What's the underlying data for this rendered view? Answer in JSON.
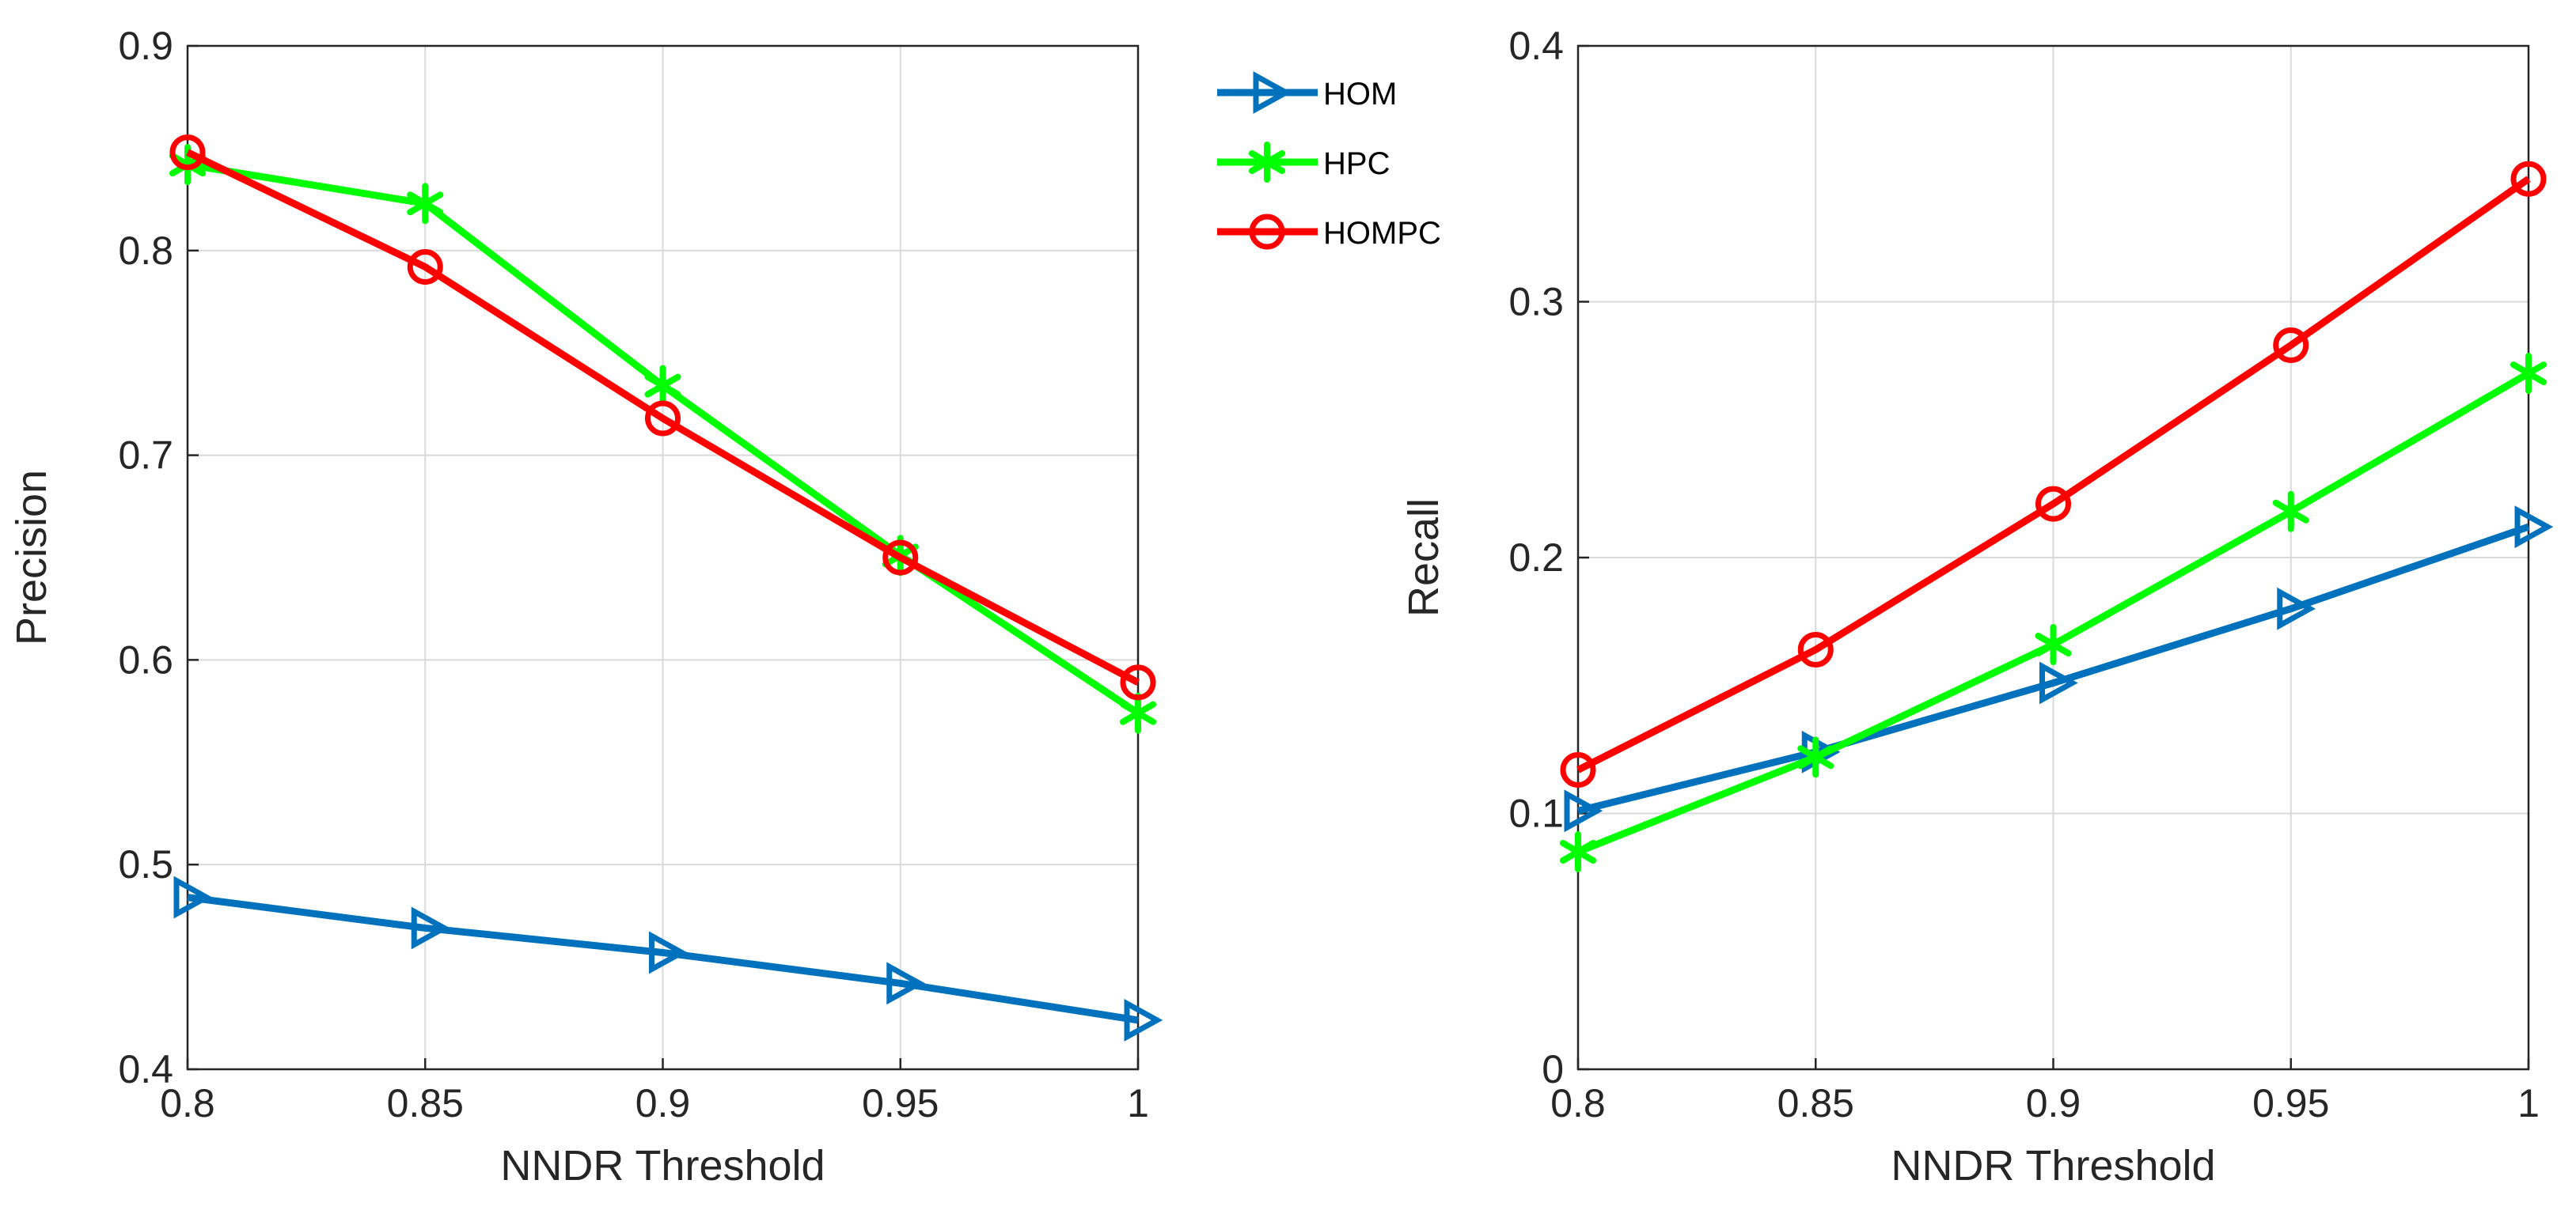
{
  "colors": {
    "HOM": "#0072BD",
    "HPC": "#00FF00",
    "HOMPC": "#FF0000",
    "grid": "#d9d9d9",
    "axis": "#262626"
  },
  "legend": {
    "placement": "top-right",
    "entries": [
      {
        "name": "HOM",
        "marker": "triangle-right"
      },
      {
        "name": "HPC",
        "marker": "asterisk"
      },
      {
        "name": "HOMPC",
        "marker": "circle"
      }
    ]
  },
  "chart_data": [
    {
      "type": "line",
      "title": "",
      "xlabel": "NNDR Threshold",
      "ylabel": "Precision",
      "x": [
        0.8,
        0.85,
        0.9,
        0.95,
        1
      ],
      "xlim": [
        0.8,
        1
      ],
      "ylim": [
        0.4,
        0.9
      ],
      "xticks": [
        "0.8",
        "0.85",
        "0.9",
        "0.95",
        "1"
      ],
      "yticks": [
        "0.4",
        "0.5",
        "0.6",
        "0.7",
        "0.8",
        "0.9"
      ],
      "ytick_values": [
        0.4,
        0.5,
        0.6,
        0.7,
        0.8,
        0.9
      ],
      "grid": true,
      "series": [
        {
          "name": "HOM",
          "values": [
            0.484,
            0.469,
            0.457,
            0.442,
            0.424
          ]
        },
        {
          "name": "HPC",
          "values": [
            0.842,
            0.823,
            0.734,
            0.651,
            0.574
          ]
        },
        {
          "name": "HOMPC",
          "values": [
            0.848,
            0.792,
            0.718,
            0.65,
            0.589
          ]
        }
      ]
    },
    {
      "type": "line",
      "title": "",
      "xlabel": "NNDR Threshold",
      "ylabel": "Recall",
      "x": [
        0.8,
        0.85,
        0.9,
        0.95,
        1
      ],
      "xlim": [
        0.8,
        1
      ],
      "ylim": [
        0,
        0.4
      ],
      "xticks": [
        "0.8",
        "0.85",
        "0.9",
        "0.95",
        "1"
      ],
      "yticks": [
        "0",
        "0.1",
        "0.2",
        "0.3",
        "0.4"
      ],
      "ytick_values": [
        0,
        0.1,
        0.2,
        0.3,
        0.4
      ],
      "grid": true,
      "series": [
        {
          "name": "HOM",
          "values": [
            0.101,
            0.124,
            0.151,
            0.18,
            0.212
          ]
        },
        {
          "name": "HPC",
          "values": [
            0.085,
            0.122,
            0.166,
            0.218,
            0.272
          ]
        },
        {
          "name": "HOMPC",
          "values": [
            0.117,
            0.164,
            0.221,
            0.283,
            0.348
          ]
        }
      ]
    }
  ]
}
